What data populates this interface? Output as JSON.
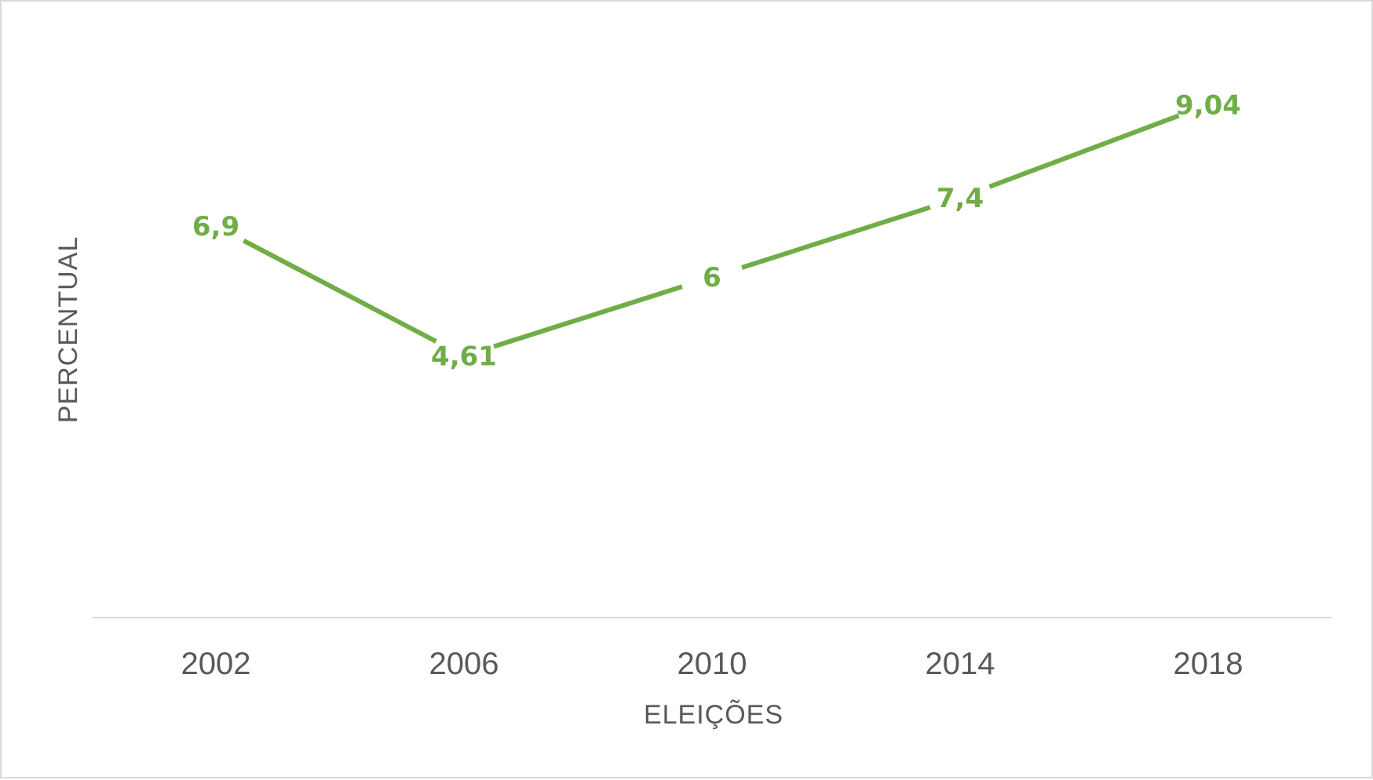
{
  "chart_data": {
    "type": "line",
    "title": "",
    "xlabel": "ELEIÇÕES",
    "ylabel": "PERCENTUAL",
    "categories": [
      "2002",
      "2006",
      "2010",
      "2014",
      "2018"
    ],
    "series": [
      {
        "values": [
          6.9,
          4.61,
          6,
          7.4,
          9.04
        ],
        "data_labels": [
          "6,9",
          "4,61",
          "6",
          "7,4",
          "9,04"
        ],
        "color": "#70AD47"
      }
    ],
    "ylim": [
      0,
      10
    ],
    "grid": false,
    "legend": "none",
    "colors": {
      "axis_line": "#D9D9D9",
      "text": "#595959",
      "series": "#70AD47"
    }
  }
}
